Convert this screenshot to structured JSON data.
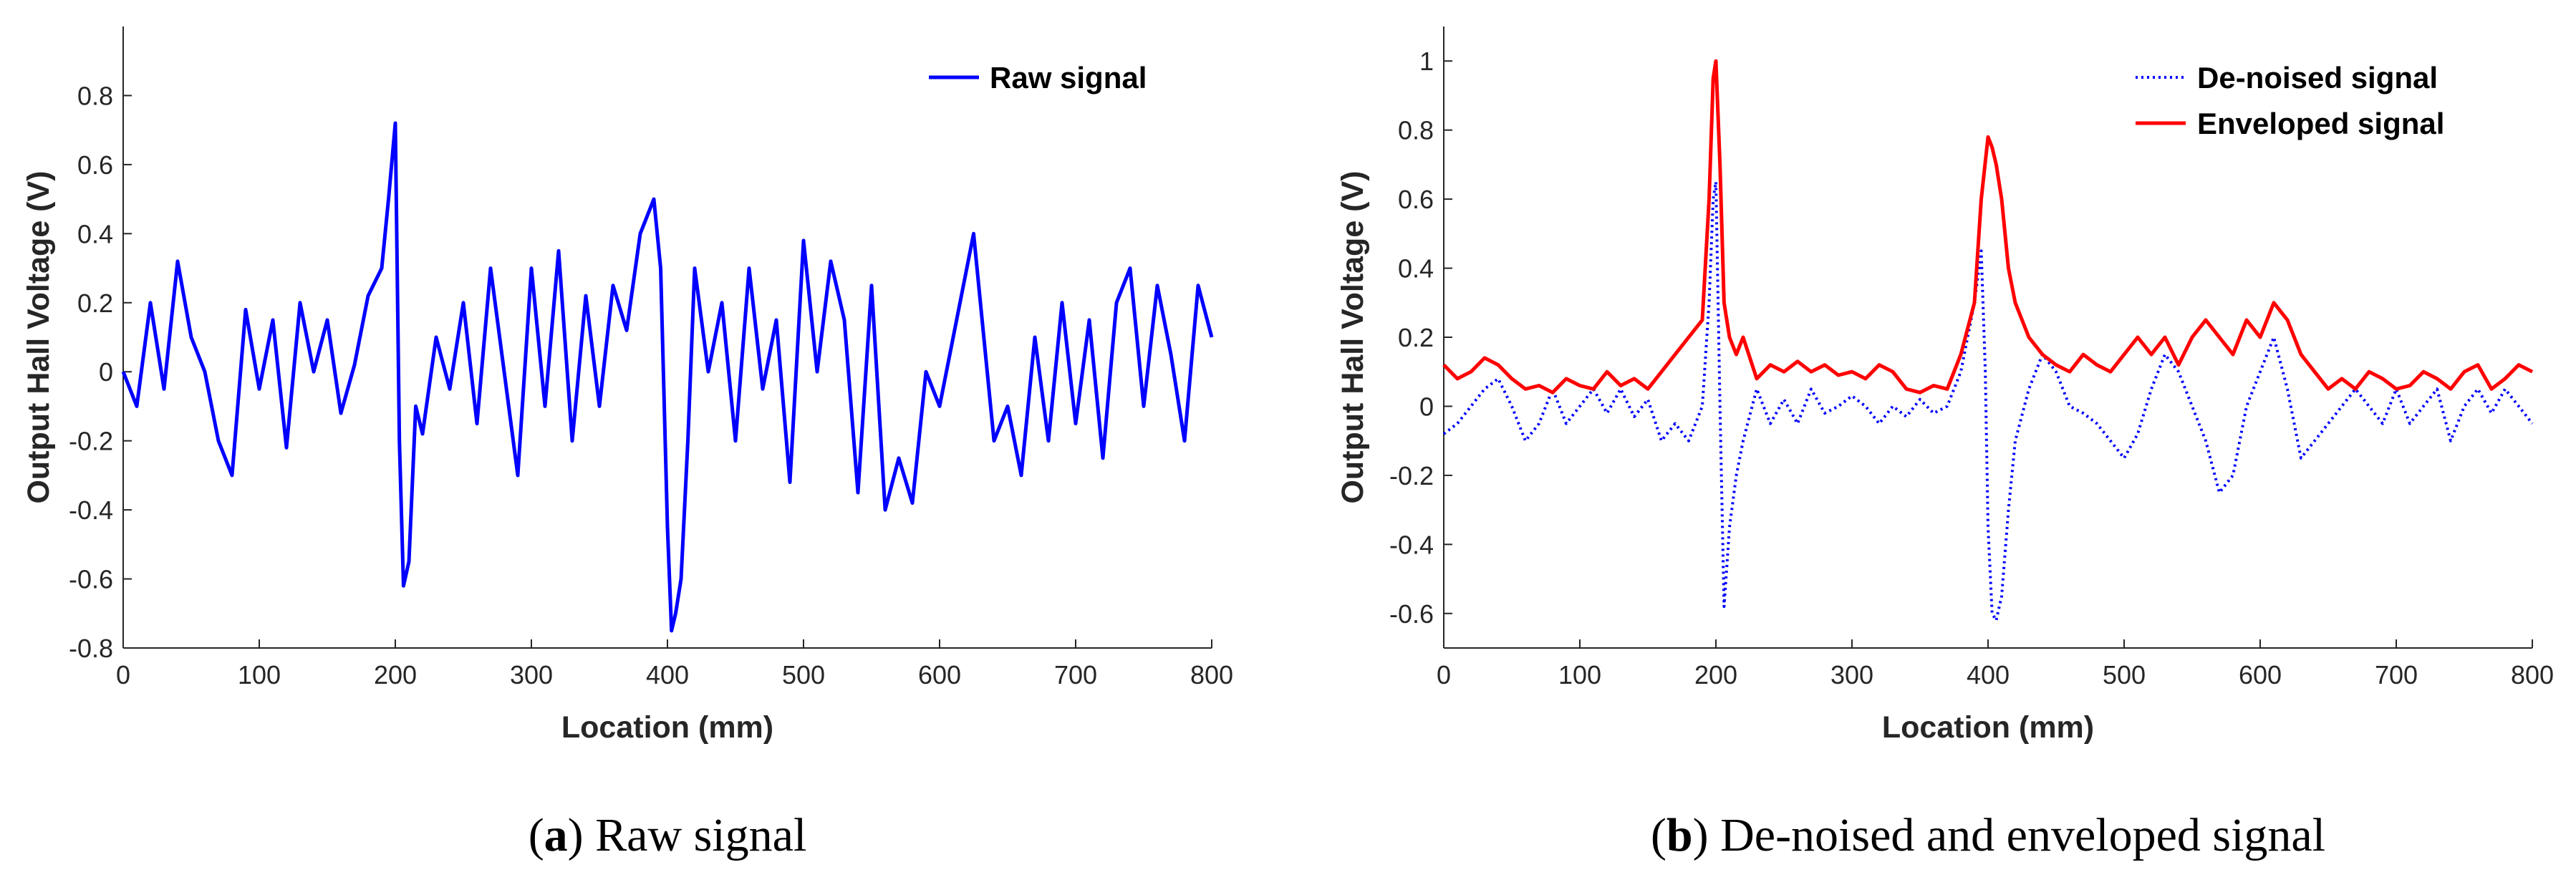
{
  "chart_data": [
    {
      "id": "a",
      "type": "line",
      "title": "",
      "xlabel": "Location (mm)",
      "ylabel": "Output Hall Voltage (V)",
      "xlim": [
        0,
        800
      ],
      "ylim": [
        -0.8,
        1.0
      ],
      "xticks": [
        0,
        100,
        200,
        300,
        400,
        500,
        600,
        700,
        800
      ],
      "xtick_labels": [
        "0",
        "100",
        "200",
        "300",
        "400",
        "500",
        "600",
        "700",
        "800"
      ],
      "yticks": [
        -0.8,
        -0.6,
        -0.4,
        -0.2,
        0,
        0.2,
        0.4,
        0.6,
        0.8
      ],
      "ytick_labels": [
        "-0.8",
        "-0.6",
        "-0.4",
        "-0.2",
        "0",
        "0.2",
        "0.4",
        "0.6",
        "0.8"
      ],
      "grid": false,
      "legend_position": "top-right",
      "caption_label": "a",
      "caption_text": "Raw signal",
      "series": [
        {
          "name": "Raw signal",
          "color": "#0000ff",
          "style": "solid",
          "x": [
            0,
            10,
            20,
            30,
            40,
            50,
            60,
            70,
            80,
            90,
            100,
            110,
            120,
            130,
            140,
            150,
            160,
            170,
            180,
            190,
            195,
            200,
            203,
            206,
            210,
            215,
            220,
            230,
            240,
            250,
            260,
            270,
            280,
            290,
            300,
            310,
            320,
            330,
            340,
            350,
            360,
            370,
            380,
            390,
            395,
            400,
            403,
            406,
            410,
            415,
            420,
            430,
            440,
            450,
            460,
            470,
            480,
            490,
            500,
            510,
            520,
            530,
            540,
            550,
            560,
            570,
            580,
            590,
            600,
            610,
            620,
            625,
            630,
            640,
            650,
            660,
            670,
            680,
            690,
            700,
            710,
            720,
            730,
            740,
            750,
            760,
            770,
            780,
            790,
            800
          ],
          "y": [
            0.0,
            -0.1,
            0.2,
            -0.05,
            0.32,
            0.1,
            0.0,
            -0.2,
            -0.3,
            0.18,
            -0.05,
            0.15,
            -0.22,
            0.2,
            0.0,
            0.15,
            -0.12,
            0.02,
            0.22,
            0.3,
            0.5,
            0.72,
            -0.2,
            -0.62,
            -0.55,
            -0.1,
            -0.18,
            0.1,
            -0.05,
            0.2,
            -0.15,
            0.3,
            0.0,
            -0.3,
            0.3,
            -0.1,
            0.35,
            -0.2,
            0.22,
            -0.1,
            0.25,
            0.12,
            0.4,
            0.5,
            0.3,
            -0.45,
            -0.75,
            -0.7,
            -0.6,
            -0.2,
            0.3,
            0.0,
            0.2,
            -0.2,
            0.3,
            -0.05,
            0.15,
            -0.32,
            0.38,
            0.0,
            0.32,
            0.15,
            -0.35,
            0.25,
            -0.4,
            -0.25,
            -0.38,
            0.0,
            -0.1,
            0.1,
            0.3,
            0.4,
            0.2,
            -0.2,
            -0.1,
            -0.3,
            0.1,
            -0.2,
            0.2,
            -0.15,
            0.15,
            -0.25,
            0.2,
            0.3,
            -0.1,
            0.25,
            0.05,
            -0.2,
            0.25,
            0.1
          ]
        }
      ]
    },
    {
      "id": "b",
      "type": "line",
      "title": "",
      "xlabel": "Location (mm)",
      "ylabel": "Output Hall Voltage (V)",
      "xlim": [
        0,
        800
      ],
      "ylim": [
        -0.7,
        1.1
      ],
      "xticks": [
        0,
        100,
        200,
        300,
        400,
        500,
        600,
        700,
        800
      ],
      "xtick_labels": [
        "0",
        "100",
        "200",
        "300",
        "400",
        "500",
        "600",
        "700",
        "800"
      ],
      "yticks": [
        -0.6,
        -0.4,
        -0.2,
        0,
        0.2,
        0.4,
        0.6,
        0.8,
        1
      ],
      "ytick_labels": [
        "-0.6",
        "-0.4",
        "-0.2",
        "0",
        "0.2",
        "0.4",
        "0.6",
        "0.8",
        "1"
      ],
      "grid": false,
      "legend_position": "top-right",
      "caption_label": "b",
      "caption_text": "De-noised and enveloped signal",
      "series": [
        {
          "name": "De-noised signal",
          "color": "#0000ff",
          "style": "dotted",
          "x": [
            0,
            10,
            20,
            30,
            40,
            50,
            60,
            70,
            80,
            90,
            100,
            110,
            120,
            130,
            140,
            150,
            160,
            170,
            180,
            190,
            195,
            198,
            200,
            203,
            206,
            210,
            215,
            220,
            230,
            240,
            250,
            260,
            270,
            280,
            290,
            300,
            310,
            320,
            330,
            340,
            350,
            360,
            370,
            380,
            390,
            395,
            398,
            400,
            403,
            406,
            410,
            415,
            420,
            430,
            440,
            450,
            460,
            470,
            480,
            490,
            500,
            510,
            520,
            530,
            540,
            550,
            560,
            570,
            580,
            590,
            600,
            610,
            620,
            630,
            640,
            650,
            660,
            670,
            680,
            690,
            700,
            710,
            720,
            730,
            740,
            750,
            760,
            770,
            780,
            790,
            800
          ],
          "y": [
            -0.08,
            -0.05,
            0.0,
            0.05,
            0.08,
            0.0,
            -0.1,
            -0.05,
            0.05,
            -0.05,
            0.0,
            0.05,
            -0.02,
            0.05,
            -0.03,
            0.02,
            -0.1,
            -0.05,
            -0.1,
            0.0,
            0.3,
            0.6,
            0.65,
            0.0,
            -0.58,
            -0.35,
            -0.2,
            -0.1,
            0.05,
            -0.05,
            0.02,
            -0.05,
            0.05,
            -0.02,
            0.0,
            0.03,
            0.0,
            -0.05,
            0.0,
            -0.03,
            0.02,
            -0.02,
            0.0,
            0.1,
            0.3,
            0.45,
            0.1,
            -0.35,
            -0.6,
            -0.62,
            -0.55,
            -0.3,
            -0.1,
            0.05,
            0.15,
            0.1,
            0.0,
            -0.02,
            -0.05,
            -0.1,
            -0.15,
            -0.08,
            0.05,
            0.15,
            0.1,
            0.0,
            -0.1,
            -0.25,
            -0.2,
            0.0,
            0.1,
            0.2,
            0.05,
            -0.15,
            -0.1,
            -0.05,
            0.0,
            0.05,
            0.0,
            -0.05,
            0.05,
            -0.05,
            0.0,
            0.05,
            -0.1,
            0.0,
            0.05,
            -0.02,
            0.05,
            0.0,
            -0.05
          ]
        },
        {
          "name": "Enveloped signal",
          "color": "#ff0000",
          "style": "solid",
          "x": [
            0,
            10,
            20,
            30,
            40,
            50,
            60,
            70,
            80,
            90,
            100,
            110,
            120,
            130,
            140,
            150,
            160,
            170,
            180,
            190,
            195,
            198,
            200,
            203,
            206,
            210,
            215,
            220,
            230,
            240,
            250,
            260,
            270,
            280,
            290,
            300,
            310,
            320,
            330,
            340,
            350,
            360,
            370,
            380,
            390,
            395,
            400,
            403,
            406,
            410,
            415,
            420,
            430,
            440,
            450,
            460,
            470,
            480,
            490,
            500,
            510,
            520,
            530,
            540,
            550,
            560,
            570,
            580,
            590,
            600,
            610,
            620,
            630,
            640,
            650,
            660,
            670,
            680,
            690,
            700,
            710,
            720,
            730,
            740,
            750,
            760,
            770,
            780,
            790,
            800
          ],
          "y": [
            0.12,
            0.08,
            0.1,
            0.14,
            0.12,
            0.08,
            0.05,
            0.06,
            0.04,
            0.08,
            0.06,
            0.05,
            0.1,
            0.06,
            0.08,
            0.05,
            0.1,
            0.15,
            0.2,
            0.25,
            0.6,
            0.95,
            1.0,
            0.7,
            0.3,
            0.2,
            0.15,
            0.2,
            0.08,
            0.12,
            0.1,
            0.13,
            0.1,
            0.12,
            0.09,
            0.1,
            0.08,
            0.12,
            0.1,
            0.05,
            0.04,
            0.06,
            0.05,
            0.15,
            0.3,
            0.6,
            0.78,
            0.75,
            0.7,
            0.6,
            0.4,
            0.3,
            0.2,
            0.15,
            0.12,
            0.1,
            0.15,
            0.12,
            0.1,
            0.15,
            0.2,
            0.15,
            0.2,
            0.12,
            0.2,
            0.25,
            0.2,
            0.15,
            0.25,
            0.2,
            0.3,
            0.25,
            0.15,
            0.1,
            0.05,
            0.08,
            0.05,
            0.1,
            0.08,
            0.05,
            0.06,
            0.1,
            0.08,
            0.05,
            0.1,
            0.12,
            0.05,
            0.08,
            0.12,
            0.1
          ]
        }
      ]
    }
  ]
}
